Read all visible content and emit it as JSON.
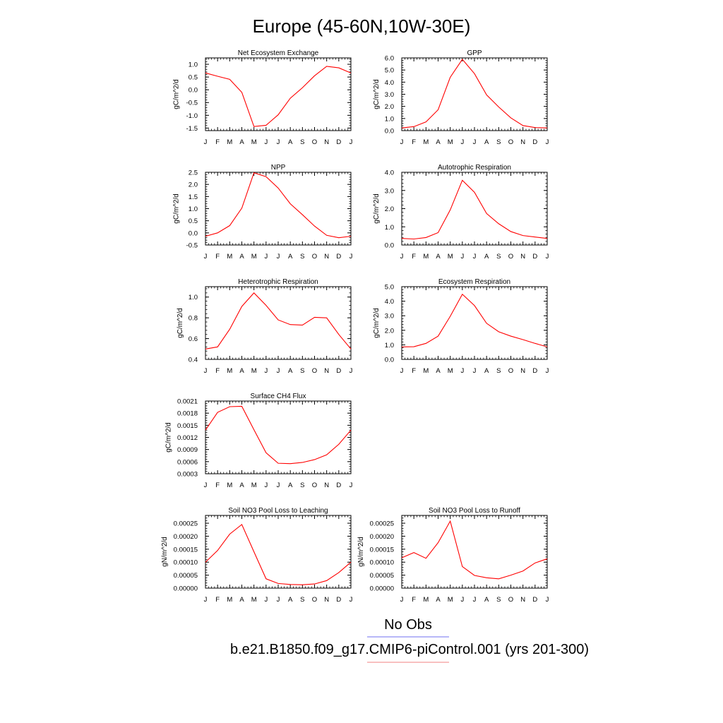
{
  "page_title": "Europe (45-60N,10W-30E)",
  "legend": {
    "obs_label": "No Obs",
    "obs_color": "#6f6ff0",
    "model_label": "b.e21.B1850.f09_g17.CMIP6-piControl.001 (yrs 201-300)",
    "model_color": "#f08080"
  },
  "line_color": "#ff0000",
  "chart_data": [
    {
      "type": "line",
      "title": "Net Ecosystem Exchange",
      "ylabel": "gC/m^2/d",
      "x": [
        "J",
        "F",
        "M",
        "A",
        "M",
        "J",
        "J",
        "A",
        "S",
        "O",
        "N",
        "D",
        "J"
      ],
      "ylim": [
        -1.6,
        1.25
      ],
      "yticks": [
        1.0,
        0.5,
        0.0,
        -0.5,
        -1.0,
        -1.5
      ],
      "ytick_labels": [
        "1.0",
        "0.5",
        "0.0",
        "-0.5",
        "-1.0",
        "-1.5"
      ],
      "series": [
        {
          "values": [
            0.66,
            0.53,
            0.41,
            -0.1,
            -1.44,
            -1.39,
            -0.98,
            -0.33,
            0.08,
            0.55,
            0.92,
            0.86,
            0.66
          ]
        }
      ]
    },
    {
      "type": "line",
      "title": "GPP",
      "ylabel": "gC/m^2/d",
      "x": [
        "J",
        "F",
        "M",
        "A",
        "M",
        "J",
        "J",
        "A",
        "S",
        "O",
        "N",
        "D",
        "J"
      ],
      "ylim": [
        0.0,
        6.0
      ],
      "yticks": [
        6.0,
        5.0,
        4.0,
        3.0,
        2.0,
        1.0,
        0.0
      ],
      "ytick_labels": [
        "6.0",
        "5.0",
        "4.0",
        "3.0",
        "2.0",
        "1.0",
        "0.0"
      ],
      "series": [
        {
          "values": [
            0.22,
            0.33,
            0.72,
            1.72,
            4.4,
            5.88,
            4.7,
            2.95,
            1.95,
            1.05,
            0.42,
            0.25,
            0.22
          ]
        }
      ]
    },
    {
      "type": "line",
      "title": "NPP",
      "ylabel": "gC/m^2/d",
      "x": [
        "J",
        "F",
        "M",
        "A",
        "M",
        "J",
        "J",
        "A",
        "S",
        "O",
        "N",
        "D",
        "J"
      ],
      "ylim": [
        -0.5,
        2.5
      ],
      "yticks": [
        2.5,
        2.0,
        1.5,
        1.0,
        0.5,
        0.0,
        -0.5
      ],
      "ytick_labels": [
        "2.5",
        "2.0",
        "1.5",
        "1.0",
        "0.5",
        "0.0",
        "-0.5"
      ],
      "series": [
        {
          "values": [
            -0.14,
            0.0,
            0.3,
            1.02,
            2.48,
            2.32,
            1.85,
            1.2,
            0.75,
            0.28,
            -0.1,
            -0.2,
            -0.14
          ]
        }
      ]
    },
    {
      "type": "line",
      "title": "Autotrophic Respiration",
      "ylabel": "gC/m^2/d",
      "x": [
        "J",
        "F",
        "M",
        "A",
        "M",
        "J",
        "J",
        "A",
        "S",
        "O",
        "N",
        "D",
        "J"
      ],
      "ylim": [
        0.0,
        4.0
      ],
      "yticks": [
        4.0,
        3.0,
        2.0,
        1.0,
        0.0
      ],
      "ytick_labels": [
        "4.0",
        "3.0",
        "2.0",
        "1.0",
        "0.0"
      ],
      "series": [
        {
          "values": [
            0.36,
            0.33,
            0.41,
            0.68,
            1.93,
            3.56,
            2.9,
            1.73,
            1.17,
            0.74,
            0.52,
            0.44,
            0.36
          ]
        }
      ]
    },
    {
      "type": "line",
      "title": "Heterotrophic Respiration",
      "ylabel": "gC/m^2/d",
      "x": [
        "J",
        "F",
        "M",
        "A",
        "M",
        "J",
        "J",
        "A",
        "S",
        "O",
        "N",
        "D",
        "J"
      ],
      "ylim": [
        0.4,
        1.1
      ],
      "yticks": [
        1.0,
        0.8,
        0.6,
        0.4
      ],
      "ytick_labels": [
        "1.0",
        "0.8",
        "0.6",
        "0.4"
      ],
      "series": [
        {
          "values": [
            0.5,
            0.52,
            0.69,
            0.91,
            1.04,
            0.92,
            0.78,
            0.735,
            0.73,
            0.805,
            0.8,
            0.64,
            0.5
          ]
        }
      ]
    },
    {
      "type": "line",
      "title": "Ecosystem Respiration",
      "ylabel": "gC/m^2/d",
      "x": [
        "J",
        "F",
        "M",
        "A",
        "M",
        "J",
        "J",
        "A",
        "S",
        "O",
        "N",
        "D",
        "J"
      ],
      "ylim": [
        0.0,
        5.0
      ],
      "yticks": [
        5.0,
        4.0,
        3.0,
        2.0,
        1.0,
        0.0
      ],
      "ytick_labels": [
        "5.0",
        "4.0",
        "3.0",
        "2.0",
        "1.0",
        "0.0"
      ],
      "series": [
        {
          "values": [
            0.86,
            0.87,
            1.1,
            1.6,
            2.96,
            4.48,
            3.7,
            2.48,
            1.9,
            1.6,
            1.36,
            1.1,
            0.86
          ]
        }
      ]
    },
    {
      "type": "line",
      "title": "Surface CH4 Flux",
      "ylabel": "gC/m^2/d",
      "x": [
        "J",
        "F",
        "M",
        "A",
        "M",
        "J",
        "J",
        "A",
        "S",
        "O",
        "N",
        "D",
        "J"
      ],
      "ylim": [
        0.0003,
        0.0021
      ],
      "yticks": [
        0.0021,
        0.0018,
        0.0015,
        0.0012,
        0.0009,
        0.0006,
        0.0003
      ],
      "ytick_labels": [
        "0.0021",
        "0.0018",
        "0.0015",
        "0.0012",
        "0.0009",
        "0.0006",
        "0.0003"
      ],
      "series": [
        {
          "values": [
            0.00138,
            0.00182,
            0.00196,
            0.00197,
            0.00139,
            0.00082,
            0.00056,
            0.00055,
            0.00058,
            0.00065,
            0.00077,
            0.00103,
            0.00138
          ]
        }
      ]
    },
    {
      "type": "line",
      "title": "Soil NO3 Pool Loss to Leaching",
      "ylabel": "gN/m^2/d",
      "x": [
        "J",
        "F",
        "M",
        "A",
        "M",
        "J",
        "J",
        "A",
        "S",
        "O",
        "N",
        "D",
        "J"
      ],
      "ylim": [
        0.0,
        0.00028
      ],
      "yticks": [
        0.00025,
        0.0002,
        0.00015,
        0.0001,
        5e-05,
        0.0
      ],
      "ytick_labels": [
        "0.00025",
        "0.00020",
        "0.00015",
        "0.00010",
        "0.00005",
        "0.00000"
      ],
      "series": [
        {
          "values": [
            0.0001,
            0.000145,
            0.000208,
            0.000245,
            0.00014,
            3.6e-05,
            1.8e-05,
            1.4e-05,
            1.3e-05,
            1.6e-05,
            2.9e-05,
            6e-05,
            0.0001
          ]
        }
      ]
    },
    {
      "type": "line",
      "title": "Soil NO3 Pool Loss to Runoff",
      "ylabel": "gN/m^2/d",
      "x": [
        "J",
        "F",
        "M",
        "A",
        "M",
        "J",
        "J",
        "A",
        "S",
        "O",
        "N",
        "D",
        "J"
      ],
      "ylim": [
        0.0,
        0.00028
      ],
      "yticks": [
        0.00025,
        0.0002,
        0.00015,
        0.0001,
        5e-05,
        0.0
      ],
      "ytick_labels": [
        "0.00025",
        "0.00020",
        "0.00015",
        "0.00010",
        "0.00005",
        "0.00000"
      ],
      "series": [
        {
          "values": [
            0.000117,
            0.000137,
            0.000115,
            0.000175,
            0.000258,
            8.3e-05,
            4.9e-05,
            4e-05,
            3.6e-05,
            5e-05,
            6.6e-05,
            9.7e-05,
            0.000113
          ]
        }
      ]
    }
  ]
}
